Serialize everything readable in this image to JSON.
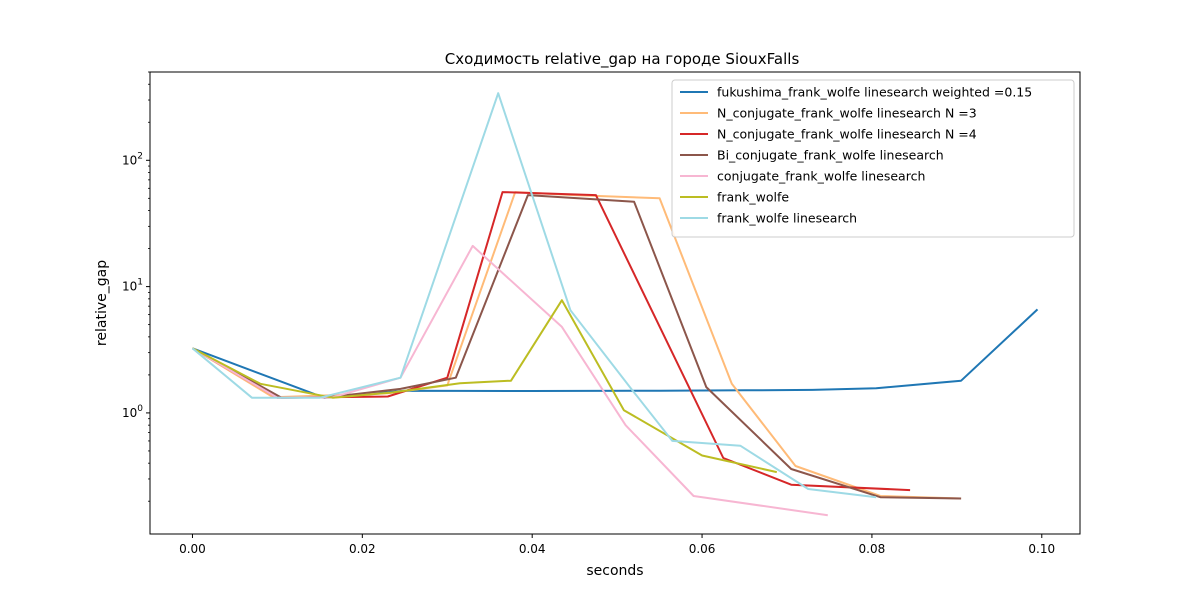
{
  "chart_data": {
    "type": "line",
    "title": "Сходимость relative_gap на городе SiouxFalls",
    "xlabel": "seconds",
    "ylabel": "relative_gap",
    "xlim": [
      -0.005,
      0.1045
    ],
    "ylim": [
      0.11,
      500
    ],
    "yscale": "log",
    "grid": false,
    "legend_position": "top-right",
    "x_ticks": [
      {
        "value": 0.0,
        "label": "0.00"
      },
      {
        "value": 0.02,
        "label": "0.02"
      },
      {
        "value": 0.04,
        "label": "0.04"
      },
      {
        "value": 0.06,
        "label": "0.06"
      },
      {
        "value": 0.08,
        "label": "0.08"
      },
      {
        "value": 0.1,
        "label": "0.10"
      }
    ],
    "y_ticks": [
      {
        "value": 1,
        "label": "10⁰",
        "base": "10",
        "exp": "0"
      },
      {
        "value": 10,
        "label": "10¹",
        "base": "10",
        "exp": "1"
      },
      {
        "value": 100,
        "label": "10²",
        "base": "10",
        "exp": "2"
      }
    ],
    "series": [
      {
        "name": "fukushima_frank_wolfe linesearch weighted =0.15",
        "color": "#1f77b4",
        "x": [
          0.0,
          0.0155,
          0.025,
          0.04,
          0.055,
          0.065,
          0.073,
          0.0805,
          0.0905,
          0.0995
        ],
        "y": [
          3.25,
          1.32,
          1.5,
          1.49,
          1.5,
          1.51,
          1.52,
          1.57,
          1.8,
          6.6
        ]
      },
      {
        "name": "N_conjugate_frank_wolfe linesearch N =3",
        "color": "#ffbb78",
        "x": [
          0.0,
          0.0095,
          0.023,
          0.03,
          0.038,
          0.045,
          0.055,
          0.0635,
          0.071,
          0.081,
          0.0905
        ],
        "y": [
          3.25,
          1.33,
          1.43,
          1.65,
          56,
          53,
          50,
          1.7,
          0.38,
          0.22,
          0.21
        ]
      },
      {
        "name": "N_conjugate_frank_wolfe linesearch N =4",
        "color": "#d62728",
        "x": [
          0.0,
          0.01,
          0.023,
          0.03,
          0.0365,
          0.0475,
          0.0625,
          0.0705,
          0.0845
        ],
        "y": [
          3.25,
          1.32,
          1.35,
          1.9,
          56,
          53,
          0.44,
          0.27,
          0.245
        ]
      },
      {
        "name": "Bi_conjugate_frank_wolfe linesearch",
        "color": "#8c564b",
        "x": [
          0.0,
          0.0105,
          0.016,
          0.0245,
          0.031,
          0.0395,
          0.052,
          0.0605,
          0.0705,
          0.081,
          0.0905
        ],
        "y": [
          3.25,
          1.32,
          1.33,
          1.55,
          1.9,
          53,
          47,
          1.6,
          0.36,
          0.215,
          0.21
        ]
      },
      {
        "name": "conjugate_frank_wolfe linesearch",
        "color": "#f7b6d2",
        "x": [
          0.0,
          0.01,
          0.0165,
          0.0245,
          0.033,
          0.0435,
          0.051,
          0.059,
          0.0748
        ],
        "y": [
          3.25,
          1.32,
          1.33,
          1.9,
          21,
          4.8,
          0.8,
          0.22,
          0.155
        ]
      },
      {
        "name": "frank_wolfe",
        "color": "#bcbd22",
        "x": [
          0.0,
          0.008,
          0.0165,
          0.0235,
          0.0315,
          0.0375,
          0.0435,
          0.0508,
          0.06,
          0.0688
        ],
        "y": [
          3.25,
          1.7,
          1.32,
          1.45,
          1.72,
          1.8,
          7.8,
          1.05,
          0.46,
          0.34
        ]
      },
      {
        "name": "frank_wolfe linesearch",
        "color": "#9edae5",
        "x": [
          0.0,
          0.007,
          0.015,
          0.0245,
          0.036,
          0.0445,
          0.0515,
          0.0565,
          0.0645,
          0.0725,
          0.0805
        ],
        "y": [
          3.25,
          1.32,
          1.32,
          1.9,
          340,
          6.5,
          1.6,
          0.6,
          0.55,
          0.25,
          0.215
        ]
      }
    ]
  }
}
